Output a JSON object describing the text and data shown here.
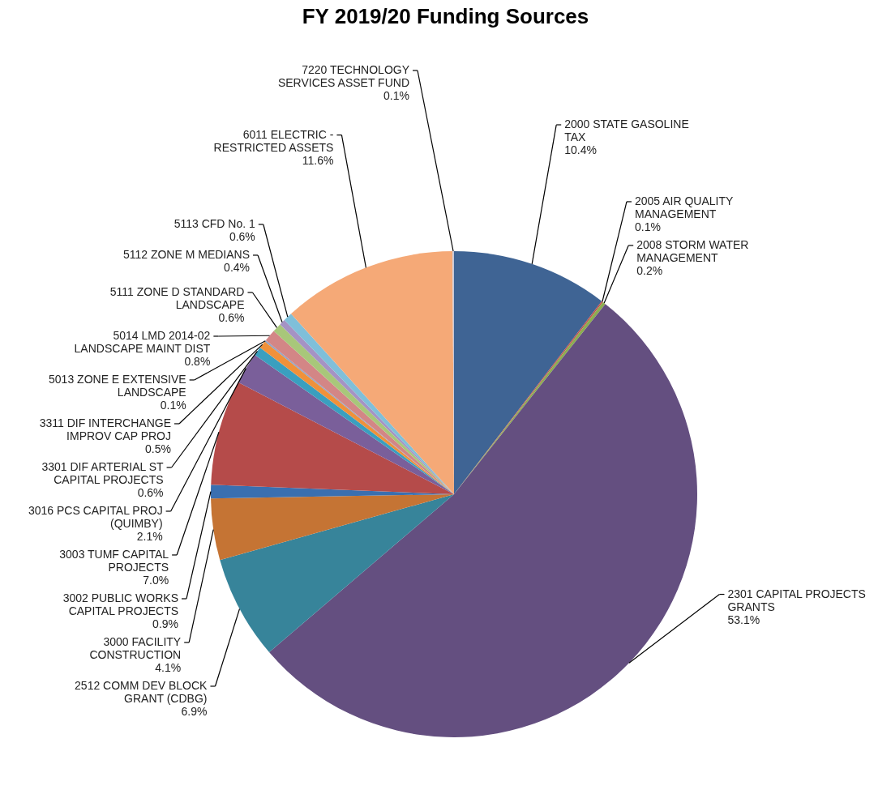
{
  "chart_data": {
    "type": "pie",
    "title": "FY 2019/20 Funding Sources",
    "categories": [
      "2000 STATE GASOLINE TAX",
      "2005 AIR QUALITY MANAGEMENT",
      "2008 STORM WATER MANAGEMENT",
      "2301 CAPITAL PROJECTS GRANTS",
      "2512 COMM DEV BLOCK GRANT (CDBG)",
      "3000 FACILITY CONSTRUCTION",
      "3002 PUBLIC WORKS CAPITAL PROJECTS",
      "3003 TUMF CAPITAL PROJECTS",
      "3016 PCS CAPITAL PROJ (QUIMBY)",
      "3301 DIF ARTERIAL ST CAPITAL PROJECTS",
      "3311 DIF INTERCHANGE IMPROV CAP PROJ",
      "5013 ZONE E EXTENSIVE LANDSCAPE",
      "5014 LMD 2014-02 LANDSCAPE MAINT DIST",
      "5111 ZONE D STANDARD LANDSCAPE",
      "5112 ZONE M MEDIANS",
      "5113 CFD No. 1",
      "6011 ELECTRIC - RESTRICTED ASSETS",
      "7220 TECHNOLOGY SERVICES ASSET FUND"
    ],
    "values": [
      10.4,
      0.1,
      0.2,
      53.1,
      6.9,
      4.1,
      0.9,
      7.0,
      2.1,
      0.6,
      0.5,
      0.1,
      0.8,
      0.6,
      0.4,
      0.6,
      11.6,
      0.1
    ],
    "colors": [
      "#3f6494",
      "#c0504d",
      "#8cad4f",
      "#644f80",
      "#37849a",
      "#c57434",
      "#3a6fb0",
      "#b54b4a",
      "#7a5f9a",
      "#3a9fbf",
      "#f0913a",
      "#8fa2c4",
      "#d38686",
      "#a8c77a",
      "#a593c4",
      "#7fbfd9",
      "#f5a977",
      "#c8c8d8"
    ],
    "value_labels": [
      "10.4%",
      "0.1%",
      "0.2%",
      "53.1%",
      "6.9%",
      "4.1%",
      "0.9%",
      "7.0%",
      "2.1%",
      "0.6%",
      "0.5%",
      "0.1%",
      "0.8%",
      "0.6%",
      "0.4%",
      "0.6%",
      "11.6%",
      "0.1%"
    ],
    "legend": false
  }
}
